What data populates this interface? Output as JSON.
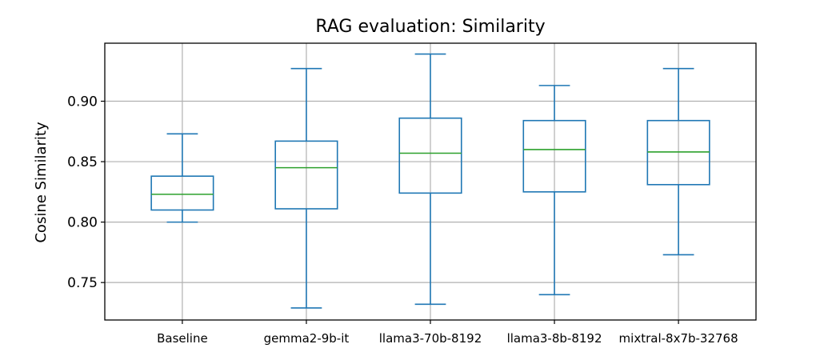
{
  "chart_data": {
    "type": "box",
    "title": "RAG evaluation: Similarity",
    "xlabel": "",
    "ylabel": "Cosine Similarity",
    "ylim": [
      0.719,
      0.948
    ],
    "y_ticks": [
      0.75,
      0.8,
      0.85,
      0.9
    ],
    "y_tick_labels": [
      "0.75",
      "0.80",
      "0.85",
      "0.90"
    ],
    "grid": true,
    "categories": [
      "Baseline",
      "gemma2-9b-it",
      "llama3-70b-8192",
      "llama3-8b-8192",
      "mixtral-8x7b-32768"
    ],
    "boxes": [
      {
        "whisker_low": 0.8,
        "q1": 0.81,
        "median": 0.823,
        "q3": 0.838,
        "whisker_high": 0.873
      },
      {
        "whisker_low": 0.729,
        "q1": 0.811,
        "median": 0.845,
        "q3": 0.867,
        "whisker_high": 0.927
      },
      {
        "whisker_low": 0.732,
        "q1": 0.824,
        "median": 0.857,
        "q3": 0.886,
        "whisker_high": 0.939
      },
      {
        "whisker_low": 0.74,
        "q1": 0.825,
        "median": 0.86,
        "q3": 0.884,
        "whisker_high": 0.913
      },
      {
        "whisker_low": 0.773,
        "q1": 0.831,
        "median": 0.858,
        "q3": 0.884,
        "whisker_high": 0.927
      }
    ],
    "colors": {
      "box": "#1f77b4",
      "median": "#2ca02c",
      "grid": "#b0b0b0"
    }
  }
}
